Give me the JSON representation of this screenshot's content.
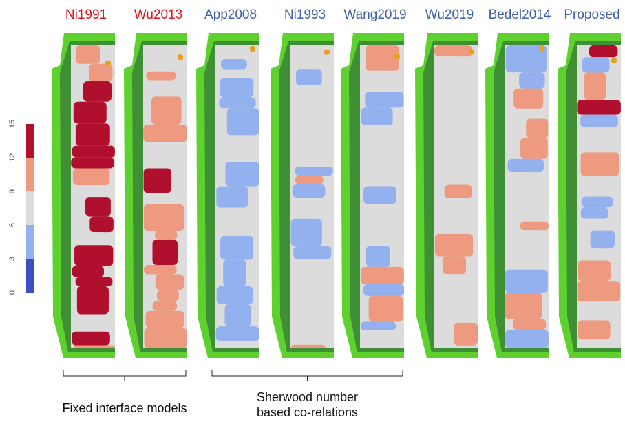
{
  "panels": [
    {
      "title": "Ni1991",
      "color": "#e8101a"
    },
    {
      "title": "Wu2013",
      "color": "#e8101a"
    },
    {
      "title": "App2008",
      "color": "#3f5fa6"
    },
    {
      "title": "Ni1993",
      "color": "#3f5fa6"
    },
    {
      "title": "Wang2019",
      "color": "#3f5fa6"
    },
    {
      "title": "Wu2019",
      "color": "#3f5fa6"
    },
    {
      "title": "Bedel2014",
      "color": "#3f5fa6"
    },
    {
      "title": "Proposed",
      "color": "#3f5fa6"
    }
  ],
  "colorbar": {
    "lim": [
      0,
      15
    ],
    "ticks": [
      0,
      3,
      6,
      9,
      12,
      15
    ],
    "colors": [
      "#3a4fc4",
      "#93b1ef",
      "#dcdcdc",
      "#ee9a80",
      "#b0102e"
    ]
  },
  "groups": [
    {
      "lines": [
        "Fixed interface models"
      ]
    },
    {
      "lines": [
        "Sherwood number",
        "based co-relations"
      ]
    }
  ]
}
